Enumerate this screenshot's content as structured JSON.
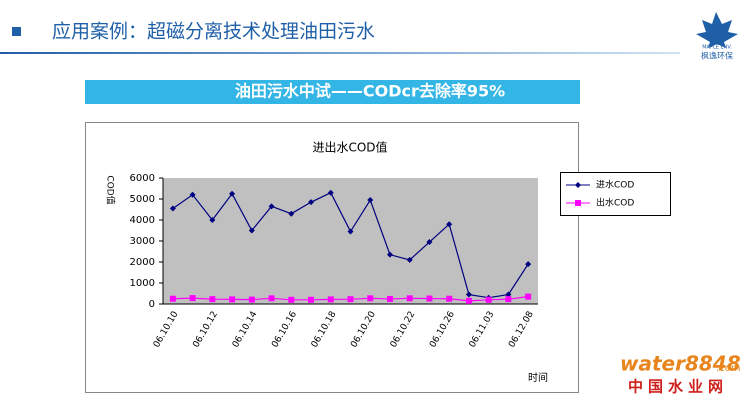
{
  "header": {
    "title": "应用案例：超磁分离技术处理油田污水"
  },
  "logo": {
    "name_en": "MAPLE ENV.",
    "name_cn": "枫逸环保"
  },
  "banner": {
    "text": "油田污水中试——CODcr去除率95%"
  },
  "watermark": {
    "brand": "water8848",
    "domain": ".com",
    "site": "中国水业网"
  },
  "chart_data": {
    "type": "line",
    "title": "进出水COD值",
    "y_label": "COD值",
    "x_label": "时间",
    "categories": [
      "06.10.10",
      null,
      "06.10.12",
      null,
      "06.10.14",
      null,
      "06.10.16",
      null,
      "06.10.18",
      null,
      "06.10.20",
      null,
      "06.10.22",
      null,
      "06.10.26",
      null,
      "06.11.03",
      null,
      "06.12.08"
    ],
    "series": [
      {
        "name": "进水COD",
        "color": "#000080",
        "marker": "diamond",
        "values": [
          4550,
          5200,
          4000,
          5250,
          3500,
          4650,
          4300,
          4850,
          5300,
          3450,
          4950,
          2350,
          2100,
          2950,
          3800,
          450,
          300,
          450,
          1900
        ]
      },
      {
        "name": "出水COD",
        "color": "#ff00ff",
        "marker": "square",
        "values": [
          250,
          280,
          230,
          220,
          210,
          270,
          200,
          200,
          220,
          230,
          270,
          240,
          270,
          260,
          250,
          150,
          200,
          230,
          350
        ]
      }
    ],
    "ylim": [
      0,
      6000
    ],
    "yticks": [
      0,
      1000,
      2000,
      3000,
      4000,
      5000,
      6000
    ],
    "grid": false,
    "legend": "right"
  }
}
